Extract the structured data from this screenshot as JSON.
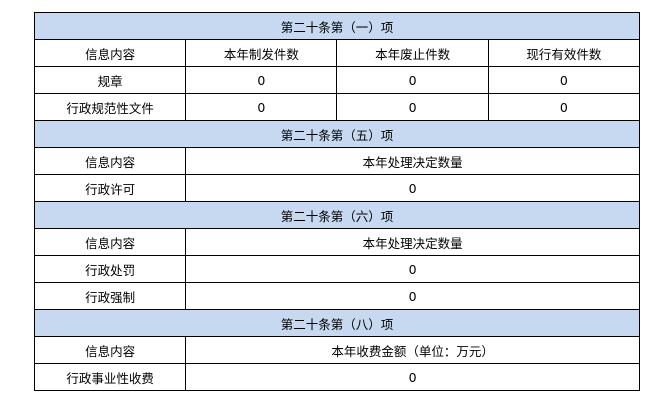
{
  "sections": [
    {
      "title": "第二十条第（一）项",
      "headers": [
        "信息内容",
        "本年制发件数",
        "本年废止件数",
        "现行有效件数"
      ],
      "rows": [
        [
          "规章",
          "0",
          "0",
          "0"
        ],
        [
          "行政规范性文件",
          "0",
          "0",
          "0"
        ]
      ]
    },
    {
      "title": "第二十条第（五）项",
      "headers": [
        "信息内容",
        "本年处理决定数量"
      ],
      "rows": [
        [
          "行政许可",
          "0"
        ]
      ]
    },
    {
      "title": "第二十条第（六）项",
      "headers": [
        "信息内容",
        "本年处理决定数量"
      ],
      "rows": [
        [
          "行政处罚",
          "0"
        ],
        [
          "行政强制",
          "0"
        ]
      ]
    },
    {
      "title": "第二十条第（八）项",
      "headers": [
        "信息内容",
        "本年收费金额（单位：万元）"
      ],
      "rows": [
        [
          "行政事业性收费",
          "0"
        ]
      ]
    }
  ],
  "colors": {
    "section_bg": "#c6d9f0"
  }
}
